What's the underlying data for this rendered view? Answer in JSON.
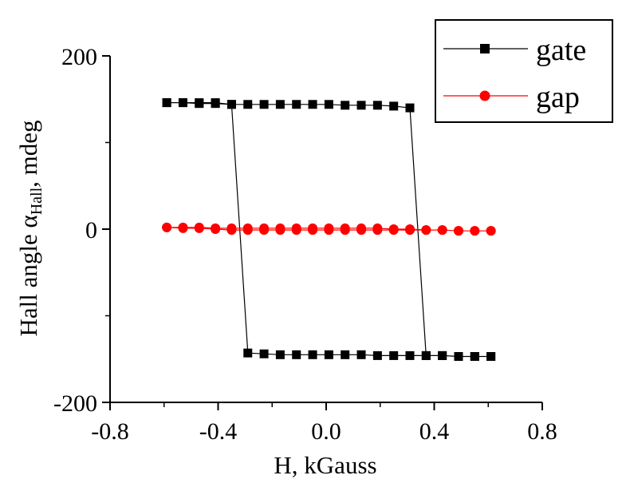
{
  "chart_data": {
    "type": "line",
    "xlabel": "H, kGauss",
    "ylabel": {
      "prefix": "Hall angle α",
      "subscript": "Hall",
      "suffix": ", mdeg"
    },
    "xlim": [
      -0.8,
      0.8
    ],
    "ylim": [
      -200,
      200
    ],
    "xticks": [
      "-0.8",
      "-0.4",
      "0.0",
      "0.4",
      "0.8"
    ],
    "yticks": [
      "200",
      "0",
      "-200"
    ],
    "ytick_values": [
      200,
      0,
      -200
    ],
    "xtick_values": [
      -0.8,
      -0.4,
      0.0,
      0.4,
      0.8
    ],
    "legend_position": "top-right",
    "grid": false,
    "series": [
      {
        "name": "gate",
        "color": "#000000",
        "marker": "square",
        "x": [
          -0.59,
          -0.53,
          -0.47,
          -0.41,
          -0.35,
          -0.29,
          -0.23,
          -0.17,
          -0.11,
          -0.05,
          0.01,
          0.07,
          0.13,
          0.19,
          0.25,
          0.31,
          0.37,
          0.43,
          0.49,
          0.55,
          0.61,
          0.61,
          0.55,
          0.49,
          0.43,
          0.37,
          0.31,
          0.25,
          0.19,
          0.13,
          0.07,
          0.01,
          -0.05,
          -0.11,
          -0.17,
          -0.23,
          -0.29,
          -0.35,
          -0.41,
          -0.47,
          -0.53,
          -0.59
        ],
        "y": [
          146,
          146,
          146,
          146,
          144,
          144,
          144,
          144,
          144,
          144,
          144,
          143,
          143,
          143,
          142,
          140,
          -146,
          -146,
          -147,
          -147,
          -147,
          -147,
          -147,
          -147,
          -146,
          -146,
          -146,
          -146,
          -146,
          -145,
          -145,
          -145,
          -145,
          -145,
          -145,
          -144,
          -143,
          144,
          145,
          145,
          146,
          146
        ]
      },
      {
        "name": "gap",
        "color": "#ff0000",
        "marker": "circle",
        "x": [
          -0.59,
          -0.53,
          -0.47,
          -0.41,
          -0.35,
          -0.29,
          -0.23,
          -0.17,
          -0.11,
          -0.05,
          0.01,
          0.07,
          0.13,
          0.19,
          0.25,
          0.31,
          0.37,
          0.43,
          0.49,
          0.55,
          0.61,
          0.61,
          0.55,
          0.49,
          0.43,
          0.37,
          0.31,
          0.25,
          0.19,
          0.13,
          0.07,
          0.01,
          -0.05,
          -0.11,
          -0.17,
          -0.23,
          -0.29,
          -0.35,
          -0.41,
          -0.47,
          -0.53,
          -0.59
        ],
        "y": [
          2,
          2,
          2,
          1,
          1,
          1,
          1,
          1,
          1,
          1,
          1,
          1,
          1,
          1,
          0,
          0,
          -1,
          -1,
          -2,
          -2,
          -2,
          -2,
          -2,
          -2,
          -1,
          -1,
          -1,
          -1,
          -1,
          -1,
          -1,
          -1,
          -1,
          -1,
          -1,
          -1,
          -1,
          -1,
          0,
          1,
          1,
          2
        ]
      }
    ]
  }
}
